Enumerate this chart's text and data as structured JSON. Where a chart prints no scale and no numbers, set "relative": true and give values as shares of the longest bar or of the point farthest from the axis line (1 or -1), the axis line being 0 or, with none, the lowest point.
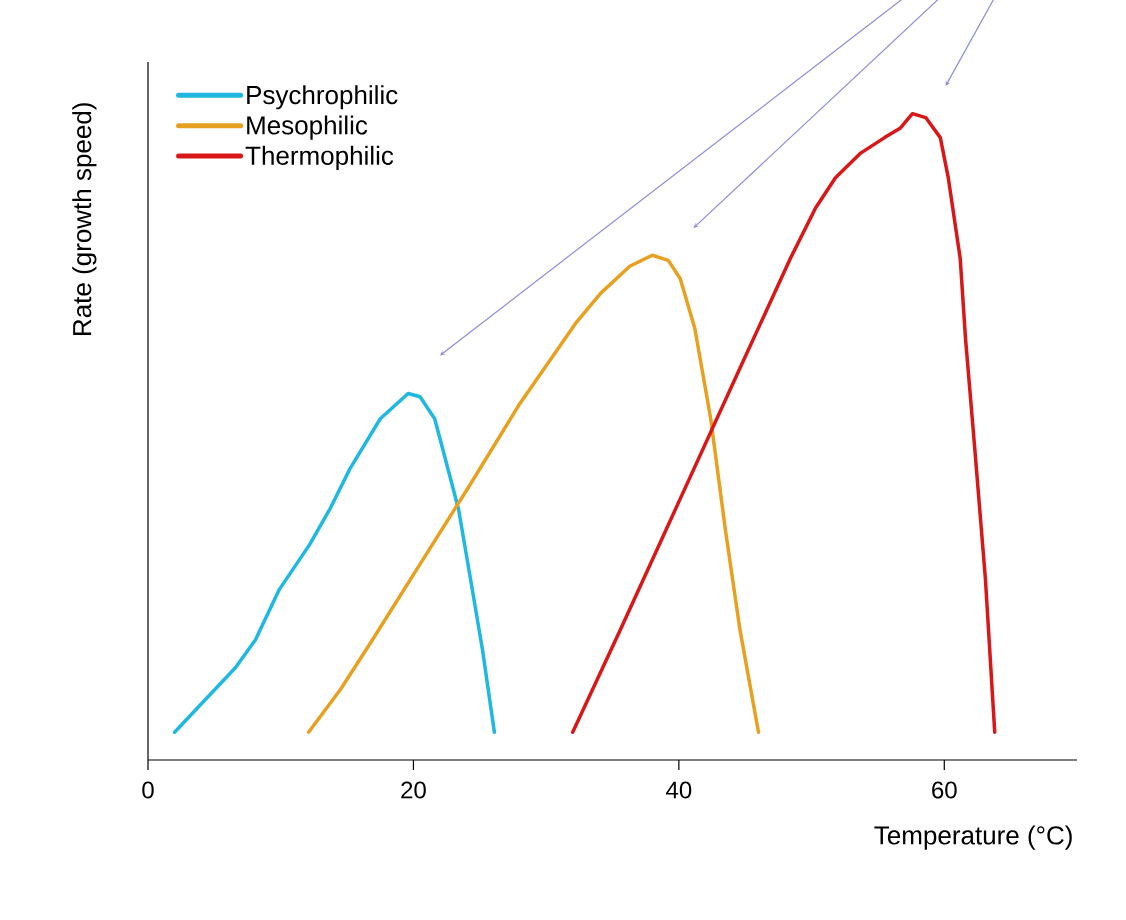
{
  "chart_data": {
    "type": "line",
    "xlabel": "Temperature (°C)",
    "ylabel": "Rate (growth speed)",
    "xlim": [
      0,
      70
    ],
    "xticks": [
      0,
      20,
      40,
      60
    ],
    "relative": true,
    "legend": "top left",
    "series": [
      {
        "name": "Psychrophilic",
        "color": "#1fb8e0",
        "x": [
          2.0,
          4.3,
          6.6,
          8.1,
          9.9,
          12.2,
          13.7,
          15.2,
          17.5,
          19.6,
          20.5,
          21.6,
          22.4,
          23.4,
          24.3,
          25.2,
          26.1
        ],
        "values": [
          0.043,
          0.093,
          0.143,
          0.186,
          0.264,
          0.334,
          0.388,
          0.45,
          0.528,
          0.567,
          0.562,
          0.528,
          0.466,
          0.388,
          0.28,
          0.171,
          0.043
        ]
      },
      {
        "name": "Mesophilic",
        "color": "#e8a020",
        "x": [
          12.1,
          14.5,
          16.7,
          20.5,
          24.3,
          28.0,
          32.2,
          34.1,
          36.3,
          38.0,
          39.2,
          40.1,
          41.2,
          42.4,
          43.5,
          44.6,
          46.0
        ],
        "values": [
          0.043,
          0.109,
          0.179,
          0.303,
          0.427,
          0.551,
          0.675,
          0.722,
          0.764,
          0.781,
          0.773,
          0.745,
          0.668,
          0.528,
          0.357,
          0.202,
          0.043
        ]
      },
      {
        "name": "Thermophilic",
        "color": "#d81818",
        "x": [
          32.0,
          35.6,
          40.1,
          44.6,
          48.4,
          50.3,
          51.8,
          53.7,
          55.5,
          56.7,
          57.6,
          58.6,
          59.7,
          60.3,
          61.2,
          61.6,
          62.3,
          63.1,
          63.8
        ],
        "values": [
          0.043,
          0.202,
          0.404,
          0.606,
          0.776,
          0.854,
          0.901,
          0.939,
          0.963,
          0.978,
          1,
          0.994,
          0.963,
          0.901,
          0.776,
          0.652,
          0.481,
          0.28,
          0.043
        ]
      }
    ]
  }
}
